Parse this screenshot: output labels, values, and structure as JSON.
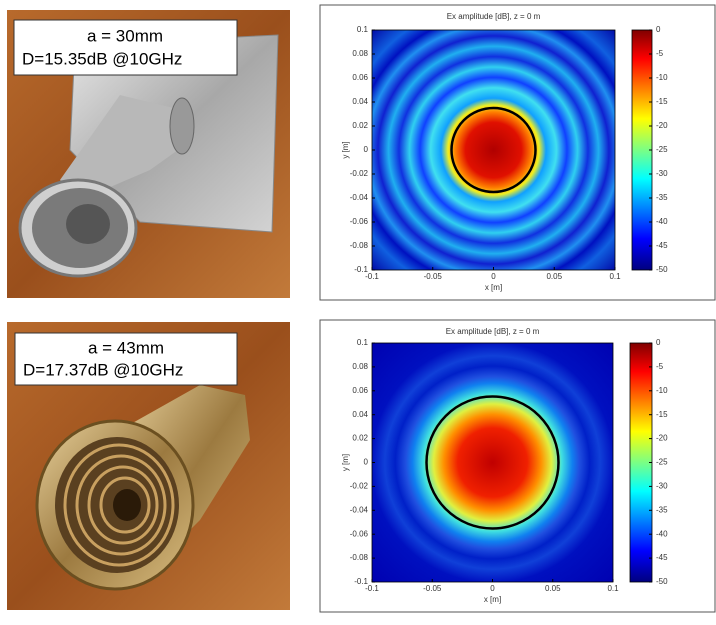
{
  "panels": [
    {
      "label": {
        "line1": "a = 30mm",
        "line2": "D=15.35dB @10GHz"
      },
      "plot": {
        "title": "Ex amplitude [dB], z = 0 m",
        "xlabel": "x [m]",
        "ylabel": "y [m]",
        "xlim": [
          -0.1,
          0.1
        ],
        "ylim": [
          -0.1,
          0.1
        ],
        "xticks": [
          -0.1,
          -0.05,
          0,
          0.05,
          0.1
        ],
        "yticks": [
          0.1,
          0.08,
          0.06,
          0.04,
          0.02,
          0,
          -0.02,
          -0.04,
          -0.06,
          -0.08,
          -0.1
        ],
        "clim": [
          -50,
          0
        ],
        "cticks": [
          0,
          -5,
          -10,
          -15,
          -20,
          -25,
          -30,
          -35,
          -40,
          -45,
          -50
        ]
      }
    },
    {
      "label": {
        "line1": "a = 43mm",
        "line2": "D=17.37dB @10GHz"
      },
      "plot": {
        "title": "Ex amplitude [dB], z = 0 m",
        "xlabel": "x [m]",
        "ylabel": "y [m]",
        "xlim": [
          -0.1,
          0.1
        ],
        "ylim": [
          -0.1,
          0.1
        ],
        "xticks": [
          -0.1,
          -0.05,
          0,
          0.05,
          0.1
        ],
        "yticks": [
          0.1,
          0.08,
          0.06,
          0.04,
          0.02,
          0,
          -0.02,
          -0.04,
          -0.06,
          -0.08,
          -0.1
        ],
        "clim": [
          -50,
          0
        ],
        "cticks": [
          0,
          -5,
          -10,
          -15,
          -20,
          -25,
          -30,
          -35,
          -40,
          -45,
          -50
        ]
      }
    }
  ]
}
